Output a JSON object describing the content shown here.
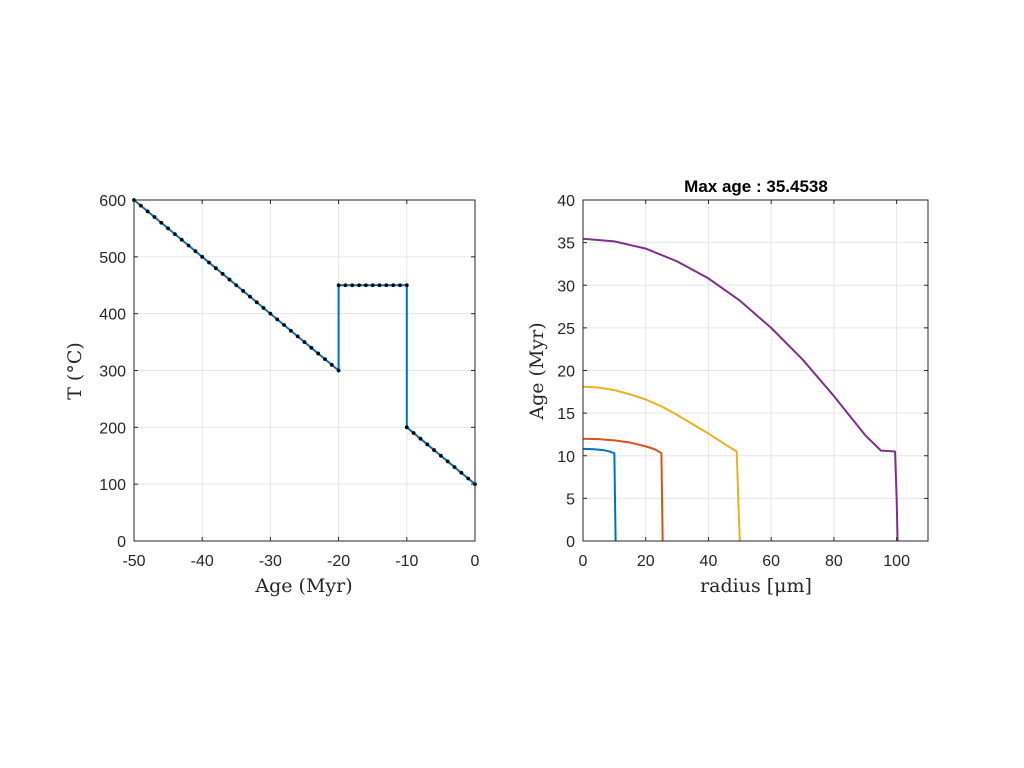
{
  "chart_data": [
    {
      "type": "line",
      "title": "",
      "xlabel": "Age (Myr)",
      "ylabel": "T (°C)",
      "xlim": [
        -50,
        0
      ],
      "ylim": [
        0,
        600
      ],
      "xticks": [
        -50,
        -40,
        -30,
        -20,
        -10,
        0
      ],
      "yticks": [
        0,
        100,
        200,
        300,
        400,
        500,
        600
      ],
      "grid": true,
      "colors": {
        "line": "#0072bd",
        "markers": "#000000"
      },
      "series": [
        {
          "style": "line",
          "x": [
            -50,
            -20,
            -20,
            -10,
            -10,
            0
          ],
          "y": [
            600,
            300,
            450,
            450,
            200,
            100
          ]
        },
        {
          "style": "markers",
          "x": [
            -50,
            -49,
            -48,
            -47,
            -46,
            -45,
            -44,
            -43,
            -42,
            -41,
            -40,
            -39,
            -38,
            -37,
            -36,
            -35,
            -34,
            -33,
            -32,
            -31,
            -30,
            -29,
            -28,
            -27,
            -26,
            -25,
            -24,
            -23,
            -22,
            -21,
            -20,
            -20,
            -19,
            -18,
            -17,
            -16,
            -15,
            -14,
            -13,
            -12,
            -11,
            -10,
            -10,
            -9,
            -8,
            -7,
            -6,
            -5,
            -4,
            -3,
            -2,
            -1,
            0
          ],
          "y": [
            600,
            590,
            580,
            570,
            560,
            550,
            540,
            530,
            520,
            510,
            500,
            490,
            480,
            470,
            460,
            450,
            440,
            430,
            420,
            410,
            400,
            390,
            380,
            370,
            360,
            350,
            340,
            330,
            320,
            310,
            300,
            450,
            450,
            450,
            450,
            450,
            450,
            450,
            450,
            450,
            450,
            450,
            200,
            190,
            180,
            170,
            160,
            150,
            140,
            130,
            120,
            110,
            100
          ]
        }
      ]
    },
    {
      "type": "line",
      "title": "Max age : 35.4538",
      "xlabel": "radius [μm]",
      "ylabel": "Age (Myr)",
      "xlim": [
        0,
        110
      ],
      "ylim": [
        0,
        40
      ],
      "xticks": [
        0,
        20,
        40,
        60,
        80,
        100
      ],
      "yticks": [
        0,
        5,
        10,
        15,
        20,
        25,
        30,
        35,
        40
      ],
      "grid": true,
      "series": [
        {
          "color": "#0072bd",
          "x": [
            0,
            2,
            4,
            6,
            8,
            10,
            10.2,
            10.4
          ],
          "y": [
            10.8,
            10.79,
            10.75,
            10.68,
            10.55,
            10.3,
            5,
            0
          ]
        },
        {
          "color": "#d95319",
          "x": [
            0,
            5,
            10,
            15,
            20,
            23,
            25,
            25.2,
            25.4
          ],
          "y": [
            12.0,
            11.95,
            11.8,
            11.55,
            11.1,
            10.75,
            10.3,
            5,
            0
          ]
        },
        {
          "color": "#edb120",
          "x": [
            0,
            5,
            10,
            15,
            20,
            25,
            30,
            35,
            40,
            45,
            49,
            49.5,
            50
          ],
          "y": [
            18.1,
            18.0,
            17.7,
            17.2,
            16.6,
            15.8,
            14.8,
            13.7,
            12.6,
            11.4,
            10.5,
            5,
            0
          ]
        },
        {
          "color": "#7e2f8e",
          "x": [
            0,
            10,
            20,
            30,
            40,
            50,
            60,
            70,
            80,
            90,
            95,
            99.5,
            100,
            100.3
          ],
          "y": [
            35.45,
            35.15,
            34.3,
            32.8,
            30.8,
            28.2,
            25.0,
            21.3,
            17.0,
            12.4,
            10.6,
            10.5,
            5,
            0
          ]
        }
      ]
    }
  ]
}
